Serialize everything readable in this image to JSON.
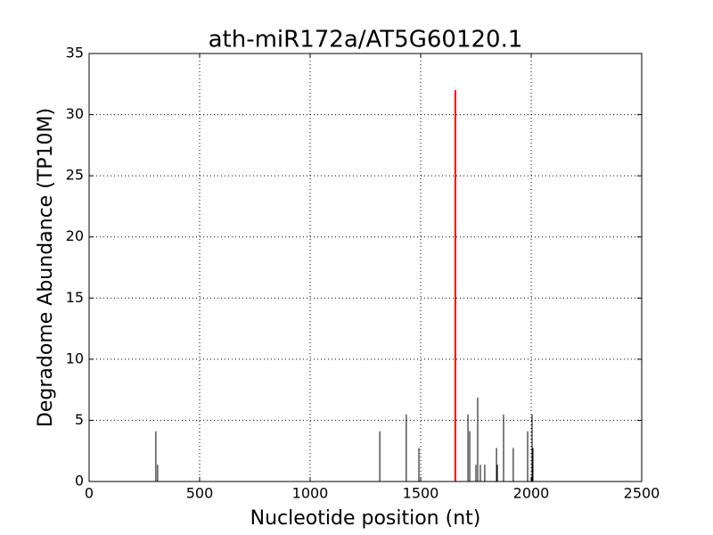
{
  "chart_data": {
    "type": "stem",
    "title": "ath-miR172a/AT5G60120.1",
    "xlabel": "Nucleotide position (nt)",
    "ylabel": "Degradome Abundance (TP10M)",
    "x": [
      302,
      310,
      1315,
      1435,
      1492,
      1657,
      1714,
      1722,
      1750,
      1758,
      1770,
      1790,
      1843,
      1847,
      1875,
      1919,
      1984,
      2004,
      2008
    ],
    "values": [
      4.11,
      1.37,
      4.11,
      5.48,
      2.74,
      32,
      5.48,
      4.11,
      1.37,
      6.85,
      1.37,
      1.37,
      2.74,
      1.37,
      5.48,
      2.74,
      4.11,
      5.48,
      2.74
    ],
    "colors": [
      "#000000",
      "#000000",
      "#000000",
      "#000000",
      "#000000",
      "#ff0000",
      "#000000",
      "#000000",
      "#000000",
      "#000000",
      "#000000",
      "#000000",
      "#000000",
      "#000000",
      "#000000",
      "#000000",
      "#000000",
      "#000000",
      "#000000"
    ],
    "xlim": [
      0,
      2500
    ],
    "xticks": [
      0,
      500,
      1000,
      1500,
      2000,
      2500
    ],
    "ylim": [
      0,
      35
    ],
    "yticks": [
      0,
      5,
      10,
      15,
      20,
      25,
      30,
      35
    ],
    "grid": true
  }
}
